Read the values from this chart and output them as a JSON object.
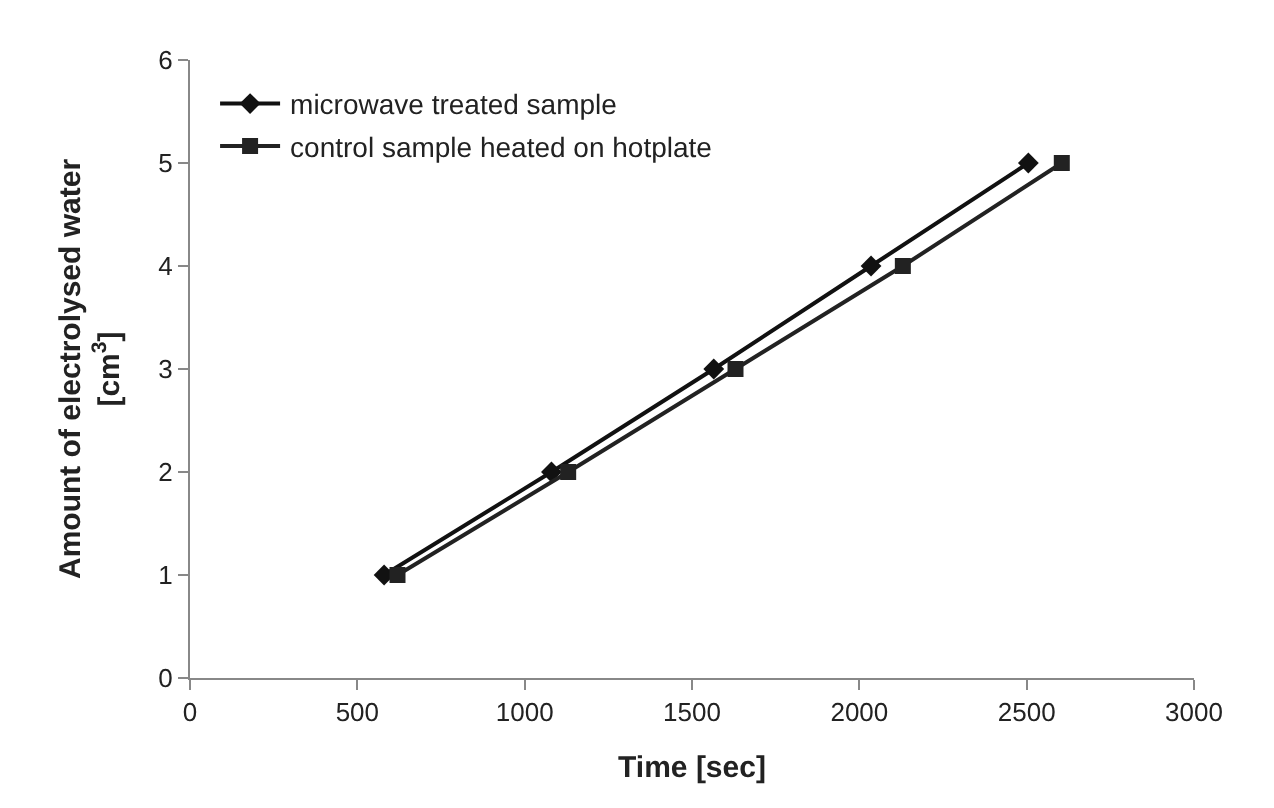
{
  "chart_data": {
    "type": "line",
    "xlabel": "Time [sec]",
    "ylabel": "Amount of electrolysed water\n[cm$^{3}$]",
    "xlim": [
      0,
      3000
    ],
    "xticks": [
      0,
      500,
      1000,
      1500,
      2000,
      2500,
      3000
    ],
    "ylim": [
      0,
      6
    ],
    "yticks": [
      0,
      1,
      2,
      3,
      4,
      5,
      6
    ],
    "grid": false,
    "legend": "top left",
    "series": [
      {
        "name": "microwave treated sample",
        "color": "#111111",
        "marker": "diamond",
        "x": [
          580,
          1080,
          1565,
          2035,
          2505
        ],
        "values": [
          1,
          2,
          3,
          4,
          5
        ]
      },
      {
        "name": "control sample heated on hotplate",
        "color": "#222222",
        "marker": "square",
        "x": [
          620,
          1130,
          1630,
          2130,
          2605
        ],
        "values": [
          1,
          2,
          3,
          4,
          5
        ]
      }
    ]
  }
}
